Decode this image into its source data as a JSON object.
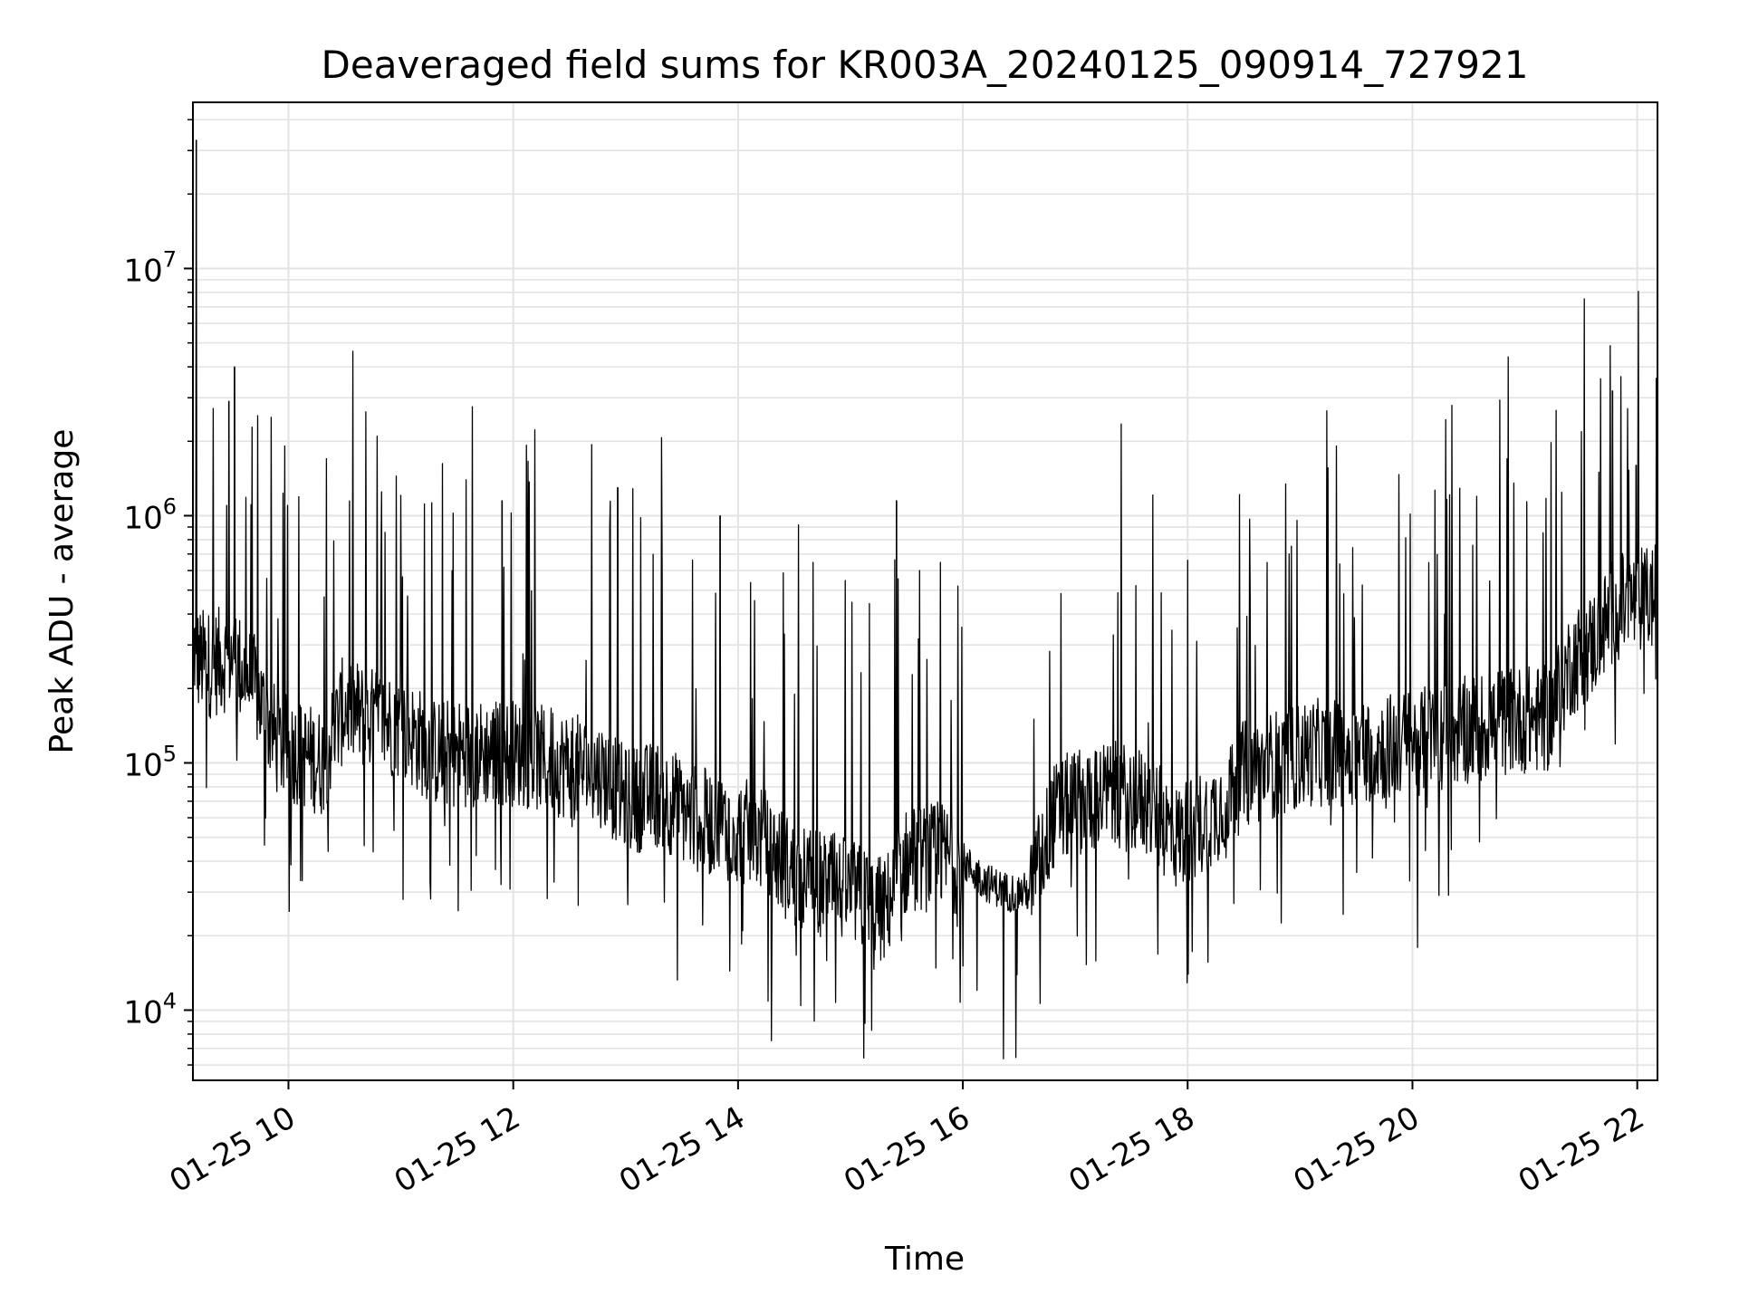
{
  "chart_data": {
    "type": "line",
    "title": "Deaveraged field sums for KR003A_20240125_090914_727921",
    "xlabel": "Time",
    "ylabel": "Peak ADU - average",
    "yscale": "log",
    "grid": true,
    "x_tick_labels": [
      "01-25 10",
      "01-25 12",
      "01-25 14",
      "01-25 16",
      "01-25 18",
      "01-25 20",
      "01-25 22"
    ],
    "x_ticks_hours": [
      10,
      12,
      14,
      16,
      18,
      20,
      22
    ],
    "xlim_hours": [
      9.15,
      22.18
    ],
    "y_ticks": [
      {
        "value": 10000,
        "base": "10",
        "exp": "4"
      },
      {
        "value": 100000,
        "base": "10",
        "exp": "5"
      },
      {
        "value": 1000000,
        "base": "10",
        "exp": "6"
      },
      {
        "value": 10000000,
        "base": "10",
        "exp": "7"
      }
    ],
    "ylim": [
      5200,
      47000000
    ],
    "line_color": "#000000",
    "series": [
      {
        "time_hours": [
          9.15,
          9.2,
          9.3,
          9.5,
          9.7,
          9.9,
          10.1,
          10.3,
          10.5,
          10.7,
          11.0,
          11.3,
          11.6,
          12.0,
          12.4,
          12.8,
          13.0,
          13.3,
          13.6,
          13.9,
          14.2,
          14.5,
          14.8,
          15.0,
          15.3,
          15.5,
          15.8,
          16.0,
          16.2,
          16.4,
          16.6,
          16.8,
          17.0,
          17.3,
          17.6,
          17.9,
          18.2,
          18.5,
          18.8,
          19.1,
          19.4,
          19.7,
          20.0,
          20.3,
          20.6,
          20.9,
          21.2,
          21.4,
          21.6,
          21.8,
          22.0,
          22.18
        ],
        "values": [
          300000,
          260000,
          250000,
          270000,
          200000,
          120000,
          110000,
          100000,
          170000,
          150000,
          140000,
          110000,
          110000,
          110000,
          100000,
          90000,
          70000,
          75000,
          60000,
          55000,
          50000,
          35000,
          32000,
          30000,
          25000,
          40000,
          42000,
          40000,
          33000,
          30000,
          30000,
          60000,
          70000,
          75000,
          70000,
          50000,
          60000,
          90000,
          100000,
          110000,
          110000,
          115000,
          120000,
          130000,
          140000,
          150000,
          150000,
          250000,
          300000,
          420000,
          450000,
          470000
        ],
        "spikes": [
          {
            "time_hours": 9.18,
            "value": 33000000
          },
          {
            "time_hours": 9.52,
            "value": 4000000
          },
          {
            "time_hours": 9.47,
            "value": 2900000
          },
          {
            "time_hours": 11.9,
            "value": 1150000
          },
          {
            "time_hours": 12.93,
            "value": 1300000
          },
          {
            "time_hours": 13.84,
            "value": 1000000
          },
          {
            "time_hours": 15.41,
            "value": 1150000
          },
          {
            "time_hours": 21.78,
            "value": 3200000
          },
          {
            "time_hours": 21.99,
            "value": 1600000
          },
          {
            "time_hours": 22.17,
            "value": 3600000
          }
        ]
      }
    ]
  }
}
